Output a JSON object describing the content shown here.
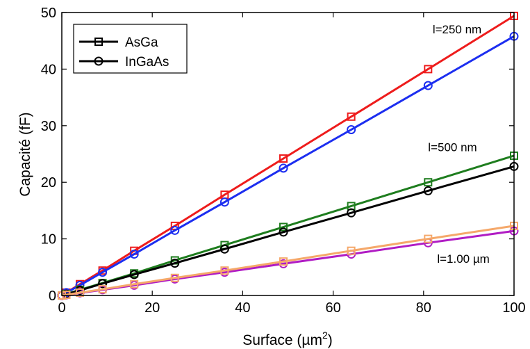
{
  "chart_data": {
    "type": "line",
    "xlabel": "Surface (µm",
    "xlabel_sup": "2",
    "xlabel_tail": ")",
    "ylabel": "Capacité (fF)",
    "xlim": [
      0,
      100
    ],
    "ylim": [
      0,
      50
    ],
    "xticks": [
      0,
      20,
      40,
      60,
      80,
      100
    ],
    "yticks": [
      0,
      10,
      20,
      30,
      40,
      50
    ],
    "grid": false,
    "legend_position": "top-left",
    "legend": [
      {
        "label": "AsGa",
        "marker": "square"
      },
      {
        "label": "InGaAs",
        "marker": "circle"
      }
    ],
    "x": [
      0,
      1,
      4,
      9,
      16,
      25,
      36,
      49,
      64,
      81,
      100
    ],
    "series": [
      {
        "marker": "square",
        "color": "#ee1c1c",
        "values": [
          0,
          0.5,
          2.0,
          4.4,
          7.9,
          12.3,
          17.8,
          24.2,
          31.6,
          40.0,
          49.4
        ]
      },
      {
        "marker": "circle",
        "color": "#1c2ef0",
        "values": [
          0,
          0.5,
          1.8,
          4.1,
          7.3,
          11.5,
          16.5,
          22.5,
          29.3,
          37.1,
          45.8
        ]
      },
      {
        "marker": "square",
        "color": "#1e7d1e",
        "values": [
          0,
          0.25,
          1.0,
          2.2,
          3.9,
          6.2,
          8.9,
          12.1,
          15.8,
          20.0,
          24.7
        ]
      },
      {
        "marker": "circle",
        "color": "#000000",
        "values": [
          0,
          0.23,
          0.9,
          2.1,
          3.7,
          5.7,
          8.2,
          11.2,
          14.6,
          18.5,
          22.8
        ]
      },
      {
        "marker": "circle",
        "color": "#b01cc4",
        "values": [
          0,
          0.11,
          0.45,
          1.0,
          1.8,
          2.9,
          4.1,
          5.6,
          7.3,
          9.3,
          11.4
        ]
      },
      {
        "marker": "square",
        "color": "#f5a86a",
        "values": [
          0,
          0.12,
          0.5,
          1.1,
          2.0,
          3.1,
          4.4,
          6.0,
          7.9,
          10.0,
          12.3
        ]
      }
    ],
    "annotations": [
      {
        "text": "l=250 nm",
        "x": 82,
        "y": 46.3
      },
      {
        "text": "l=500 nm",
        "x": 81,
        "y": 25.5
      },
      {
        "text": "l=1.00 µm",
        "x": 83,
        "y": 5.8
      }
    ]
  }
}
